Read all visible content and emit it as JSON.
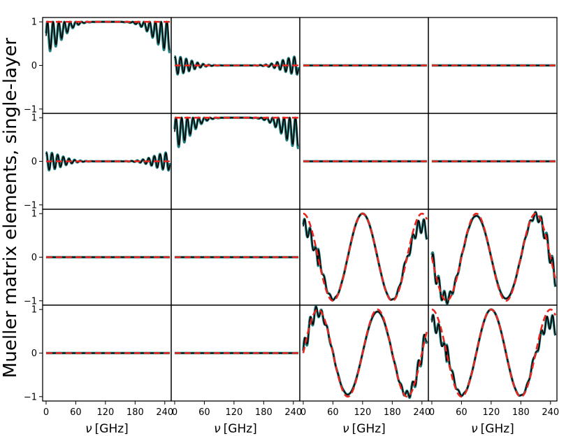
{
  "colors": {
    "model_a": "#000000",
    "model_b": "#1e7b7b",
    "ideal": "#e8251f"
  },
  "chart_data": {
    "type": "line",
    "layout": "4x4 grid of Mueller matrix element panels (row i, column j)",
    "ylabel": "Mueller matrix elements, single-layer",
    "xlabel": "ν [GHz]",
    "xlabel_prefix": "ν",
    "xlabel_unit": "[GHz]",
    "xlim": [
      -7,
      253
    ],
    "ylim": [
      -1.1,
      1.1
    ],
    "x_ticks": [
      0,
      60,
      120,
      180,
      240
    ],
    "x_tick_labels": [
      "0",
      "60",
      "120",
      "180",
      "240"
    ],
    "y_ticks": [
      -1,
      0,
      1
    ],
    "y_tick_labels": [
      "−1",
      "0",
      "1"
    ],
    "legend": "none",
    "grid": false,
    "line_styles": {
      "simulated_black": "solid black",
      "simulated_teal": "solid teal, thick",
      "ideal": "dashed red"
    },
    "panel_models": [
      [
        "m11",
        "m12",
        "zero",
        "zero"
      ],
      [
        "m12",
        "m11",
        "zero",
        "zero"
      ],
      [
        "zero",
        "zero",
        "cos",
        "minus_sin"
      ],
      [
        "zero",
        "zero",
        "sin",
        "cos"
      ]
    ],
    "ideal_curves": {
      "m11": "y = 1 for all ν",
      "m12": "y = 0 for all ν",
      "zero": "y = 0 for all ν",
      "cos": "y = cos(2π ν / 120 GHz)",
      "sin": "y = sin(2π ν / 120 GHz)",
      "minus_sin": "y = −sin(2π ν / 120 GHz)"
    },
    "simulated_features": {
      "m11": "fringing between ~0.35 and 1.0 below 80 GHz and above 170 GHz, ~1.0 in between",
      "m12": "fringing between ~−0.2 and +0.2 below 80 GHz and above 170 GHz, ~0 in between",
      "cos": "follows cos with ripple and reduced amplitude near edges",
      "sin": "follows sin with ripple near edges",
      "minus_sin": "follows −sin with ripple near edges"
    },
    "x_range_simulated": [
      0,
      250
    ]
  }
}
